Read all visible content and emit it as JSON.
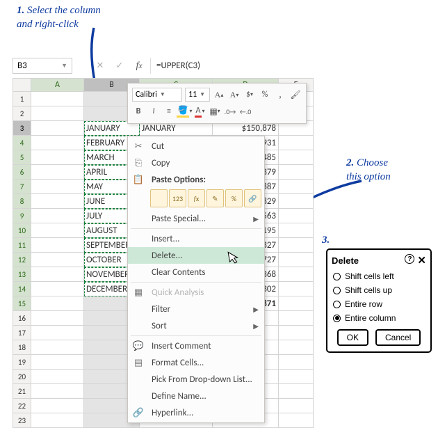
{
  "annotations": {
    "step1_num": "1.",
    "step1": "Select the column\nand right-click",
    "step2_num": "2.",
    "step2": "Choose\nthis option",
    "step3_num": "3.",
    "arrow_color": "#0e3ba0"
  },
  "formula_bar": {
    "name_ref": "B3",
    "formula": "=UPPER(C3)"
  },
  "mini_toolbar": {
    "font_name": "Calibri",
    "font_size": "11"
  },
  "grid": {
    "col_headers": [
      "A",
      "B",
      "C",
      "D",
      "E"
    ],
    "selected_col": "B",
    "active_row_header": "3",
    "rows": [
      {
        "n": 1
      },
      {
        "n": 2
      },
      {
        "n": 3,
        "b": "JANUARY",
        "c": "JANUARY",
        "d": "$150,878"
      },
      {
        "n": 4,
        "b": "FEBRUARY",
        "d": "$275,931"
      },
      {
        "n": 5,
        "b": "MARCH",
        "d": "$158,485"
      },
      {
        "n": 6,
        "b": "APRIL",
        "d": "$114,379"
      },
      {
        "n": 7,
        "b": "MAY",
        "d": "$187,887"
      },
      {
        "n": 8,
        "b": "JUNE",
        "d": "$272,829"
      },
      {
        "n": 9,
        "b": "JULY",
        "d": "$193,563"
      },
      {
        "n": 10,
        "b": "AUGUST",
        "d": "$230,195"
      },
      {
        "n": 11,
        "b": "SEPTEMBER",
        "d": "$261,327"
      },
      {
        "n": 12,
        "b": "OCTOBER",
        "d": "$150,727"
      },
      {
        "n": 13,
        "b": "NOVEMBER",
        "d": "$143,368"
      },
      {
        "n": 14,
        "b": "DECEMBER",
        "d": "$271,302"
      },
      {
        "n": 15,
        "d": ",410,871"
      },
      {
        "n": 16
      },
      {
        "n": 17
      },
      {
        "n": 18
      },
      {
        "n": 19
      },
      {
        "n": 20
      },
      {
        "n": 21
      },
      {
        "n": 22
      },
      {
        "n": 23
      }
    ]
  },
  "context_menu": {
    "cut": "Cut",
    "copy": "Copy",
    "paste_options": "Paste Options:",
    "paste_icons": [
      "",
      "123",
      "fx",
      "✎",
      "%",
      "⇆"
    ],
    "paste_special": "Paste Special...",
    "insert": "Insert...",
    "delete": "Delete...",
    "clear": "Clear Contents",
    "quick": "Quick Analysis",
    "filter": "Filter",
    "sort": "Sort",
    "comment": "Insert Comment",
    "format": "Format Cells...",
    "pick": "Pick From Drop-down List...",
    "define": "Define Name...",
    "hyperlink": "Hyperlink..."
  },
  "dialog": {
    "title": "Delete",
    "opt_left": "Shift cells left",
    "opt_up": "Shift cells up",
    "opt_row": "Entire row",
    "opt_col": "Entire column",
    "ok": "OK",
    "cancel": "Cancel"
  }
}
